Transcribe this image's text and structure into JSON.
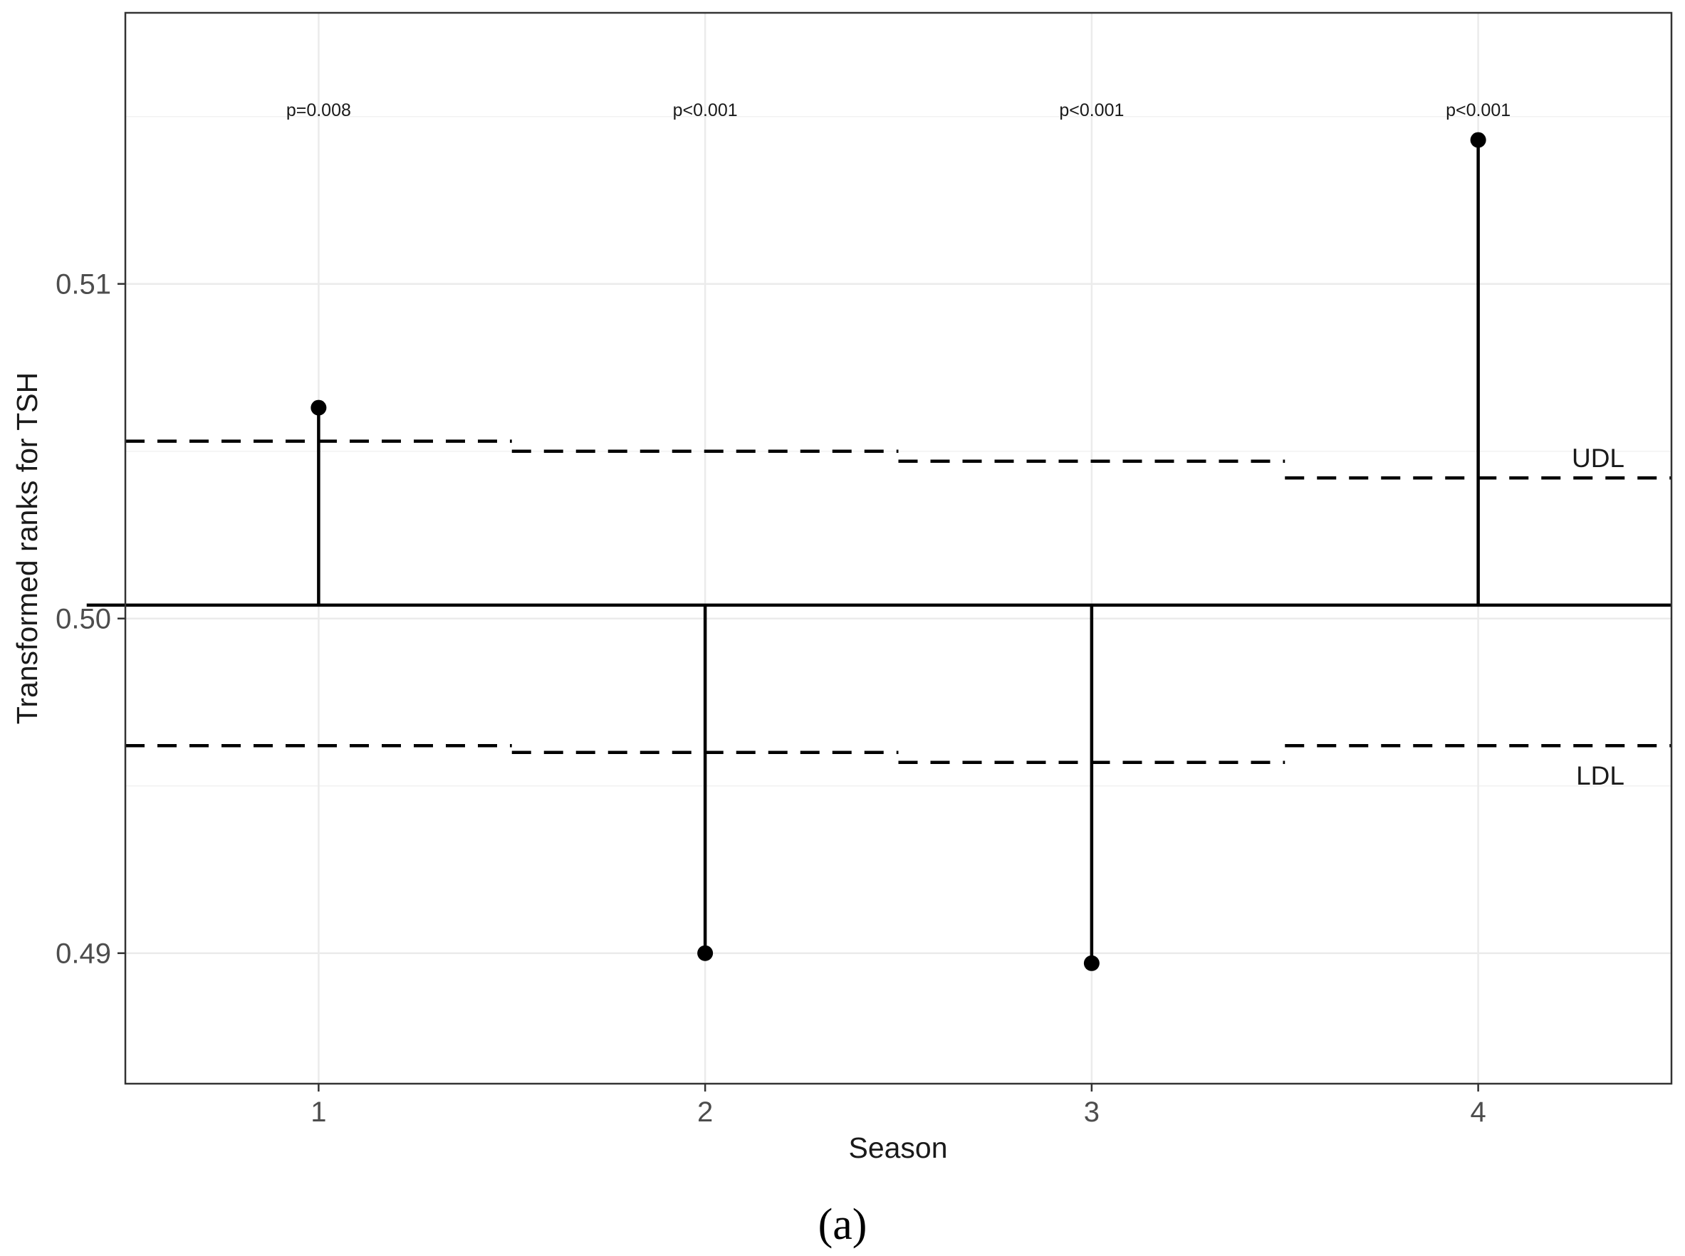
{
  "chart_data": {
    "type": "decision-chart",
    "xlabel": "Season",
    "ylabel": "Transformed ranks for TSH",
    "x_ticks": [
      "1",
      "2",
      "3",
      "4"
    ],
    "y_ticks": [
      "0.49",
      "0.50",
      "0.51"
    ],
    "xlim": [
      0.5,
      4.5
    ],
    "ylim": [
      0.4861,
      0.5181
    ],
    "center_line": 0.5004,
    "points": [
      {
        "season": 1,
        "value": 0.5063,
        "p_label": "p=0.008"
      },
      {
        "season": 2,
        "value": 0.49,
        "p_label": "p<0.001"
      },
      {
        "season": 3,
        "value": 0.4897,
        "p_label": "p<0.001"
      },
      {
        "season": 4,
        "value": 0.5143,
        "p_label": "p<0.001"
      }
    ],
    "upper_limit": {
      "label": "UDL",
      "values": [
        0.5053,
        0.505,
        0.5047,
        0.5042
      ]
    },
    "lower_limit": {
      "label": "LDL",
      "values": [
        0.4962,
        0.496,
        0.4957,
        0.4962
      ]
    },
    "grid": true,
    "caption": "(a)"
  }
}
